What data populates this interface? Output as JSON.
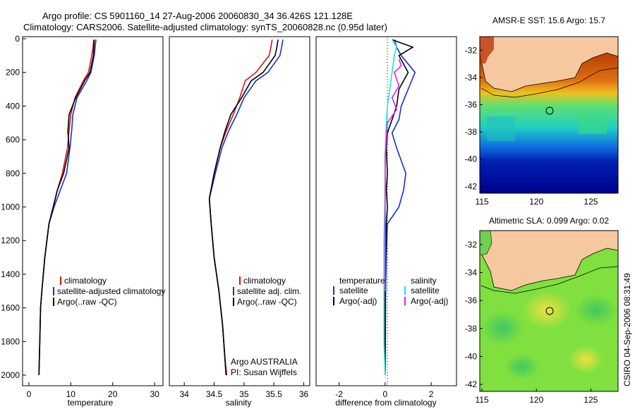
{
  "header": {
    "line1": "Argo profile: CS 5901160_14 27-Aug-2006 20060830_34 36.426S 121.128E",
    "line2": "Climatology: CARS2006. Satellite-adjusted climatology: synTS_20060828.nc (0.95d later)"
  },
  "footer": {
    "stamp": "CSIRO 04-Sep-2006 08:31:49",
    "argo_note": "Argo AUSTRALIA",
    "pi_note": "PI: Susan Wijffels"
  },
  "colors": {
    "climatology": "#e01010",
    "satellite": "#1a2be0",
    "argo": "#000000",
    "sat_sal": "#20e0e0",
    "argo_sal": "#e020e0",
    "land": "#f6c8a0"
  },
  "chart_data": [
    {
      "type": "line",
      "xlabel": "temperature",
      "ylim": [
        2000,
        0
      ],
      "xlim": [
        -1.5,
        32
      ],
      "xticks": [
        0,
        10,
        20,
        30
      ],
      "yticks": [
        0,
        200,
        400,
        600,
        800,
        1000,
        1200,
        1400,
        1600,
        1800,
        2000
      ],
      "legend": [
        "climatology",
        "satellite-adjusted climatology",
        "Argo(..raw -QC)"
      ],
      "series": [
        {
          "name": "climatology",
          "x": [
            15.5,
            15.3,
            15.0,
            14.2,
            13.0,
            11.0,
            10.0,
            9.6,
            9.2,
            8.0,
            6.8,
            5.8,
            4.8,
            3.8,
            3.1,
            2.8,
            2.6,
            2.5,
            2.4
          ],
          "y": [
            5,
            50,
            100,
            200,
            250,
            350,
            450,
            550,
            650,
            800,
            900,
            1000,
            1100,
            1300,
            1500,
            1600,
            1800,
            1900,
            2000
          ]
        },
        {
          "name": "satellite-adjusted climatology",
          "x": [
            16.0,
            15.8,
            15.6,
            14.8,
            13.8,
            11.5,
            10.5,
            10.2,
            9.8,
            9.0,
            7.5,
            6.0,
            4.8,
            3.8,
            3.1,
            2.8,
            2.6,
            2.5,
            2.4
          ],
          "y": [
            5,
            50,
            100,
            200,
            250,
            350,
            450,
            550,
            650,
            800,
            900,
            1000,
            1100,
            1300,
            1500,
            1600,
            1800,
            1900,
            2000
          ]
        },
        {
          "name": "Argo(..raw -QC)",
          "x": [
            15.6,
            15.5,
            15.4,
            14.6,
            13.3,
            11.2,
            9.6,
            9.3,
            9.6,
            8.3,
            6.8,
            5.8,
            4.8,
            3.8,
            3.1,
            2.8,
            2.6,
            2.5,
            2.4
          ],
          "y": [
            5,
            50,
            100,
            200,
            250,
            350,
            450,
            550,
            650,
            800,
            900,
            1000,
            1100,
            1300,
            1500,
            1600,
            1800,
            1900,
            2000
          ]
        }
      ]
    },
    {
      "type": "line",
      "xlabel": "salinity",
      "ylim": [
        2000,
        0
      ],
      "xlim": [
        33.75,
        36.1
      ],
      "xticks": [
        34,
        34.5,
        35,
        35.5,
        36
      ],
      "legend": [
        "climatology",
        "satellite adj. clim.",
        "Argo(..raw -QC)"
      ],
      "series": [
        {
          "name": "climatology",
          "x": [
            35.47,
            35.45,
            35.42,
            35.2,
            35.02,
            34.93,
            34.82,
            34.7,
            34.6,
            34.5,
            34.42,
            34.45,
            34.5,
            34.58,
            34.64,
            34.68,
            34.71
          ],
          "y": [
            5,
            50,
            100,
            200,
            250,
            350,
            450,
            550,
            650,
            800,
            950,
            1100,
            1300,
            1500,
            1700,
            1900,
            2000
          ]
        },
        {
          "name": "satellite adj. clim.",
          "x": [
            35.65,
            35.63,
            35.6,
            35.4,
            35.2,
            35.0,
            34.88,
            34.74,
            34.63,
            34.52,
            34.42,
            34.45,
            34.5,
            34.58,
            34.64,
            34.68,
            34.7
          ],
          "y": [
            5,
            50,
            100,
            200,
            250,
            350,
            450,
            550,
            650,
            800,
            950,
            1100,
            1300,
            1500,
            1700,
            1900,
            2000
          ]
        },
        {
          "name": "Argo(..raw -QC)",
          "x": [
            35.57,
            35.55,
            35.52,
            35.32,
            35.12,
            34.96,
            34.78,
            34.68,
            34.6,
            34.5,
            34.42,
            34.45,
            34.5,
            34.58,
            34.64,
            34.68,
            34.7
          ],
          "y": [
            5,
            50,
            100,
            200,
            250,
            350,
            450,
            550,
            650,
            800,
            950,
            1100,
            1300,
            1500,
            1700,
            1900,
            2000
          ]
        }
      ]
    },
    {
      "type": "line",
      "xlabel": "difference from climatology",
      "ylim": [
        2000,
        0
      ],
      "xlim": [
        -3,
        3.1
      ],
      "xticks": [
        -2,
        0,
        2
      ],
      "legend_headers": [
        "temperature",
        "salinity"
      ],
      "legend": [
        "satellite",
        "Argo(-adj)",
        "satellite",
        "Argo(-adj)"
      ],
      "series": [
        {
          "name": "temperature satellite",
          "x": [
            0.4,
            0.5,
            0.7,
            1.3,
            1.0,
            0.7,
            0.6,
            0.3,
            0.5,
            0.9,
            0.8,
            0.6,
            0.1,
            0.05,
            0.02,
            0.01,
            0.0
          ],
          "y": [
            5,
            50,
            100,
            200,
            300,
            400,
            480,
            560,
            650,
            800,
            900,
            1000,
            1100,
            1300,
            1500,
            1800,
            2000
          ]
        },
        {
          "name": "temperature Argo(-adj)",
          "x": [
            0.3,
            1.2,
            0.6,
            1.0,
            0.6,
            0.5,
            0.3,
            0.1,
            0.05,
            0.1,
            0.05,
            0.1,
            0.05,
            0.02,
            0.0,
            0.0,
            0.0
          ],
          "y": [
            5,
            50,
            100,
            200,
            300,
            400,
            480,
            560,
            650,
            800,
            900,
            1000,
            1100,
            1300,
            1500,
            1800,
            2000
          ]
        },
        {
          "name": "salinity satellite",
          "x": [
            0.3,
            0.5,
            0.4,
            0.3,
            0.2,
            0.1,
            0.05,
            0.0,
            0.0,
            -0.05,
            -0.05,
            -0.05,
            0.0
          ],
          "y": [
            5,
            50,
            100,
            200,
            300,
            400,
            500,
            700,
            900,
            1200,
            1500,
            1800,
            2000
          ]
        },
        {
          "name": "salinity Argo(-adj)",
          "x": [
            0.6,
            0.7,
            0.4,
            0.6,
            0.3,
            0.5,
            0.1,
            0.0,
            0.0,
            0.0
          ],
          "y": [
            120,
            160,
            200,
            280,
            350,
            420,
            500,
            700,
            1000,
            1500
          ]
        }
      ]
    },
    {
      "type": "heatmap",
      "title": "AMSR-E SST: 15.6 Argo: 15.7",
      "xlim": [
        114.8,
        127.5
      ],
      "ylim": [
        -42.5,
        -31
      ],
      "xticks": [
        115,
        120,
        125
      ],
      "yticks": [
        -32,
        -34,
        -36,
        -38,
        -40,
        -42
      ],
      "float_position": {
        "lon": 121.1,
        "lat": -36.4
      }
    },
    {
      "type": "heatmap",
      "title": "Altimetric SLA: 0.099 Argo: 0.02",
      "xlim": [
        114.8,
        127.5
      ],
      "ylim": [
        -42.5,
        -31
      ],
      "xticks": [
        115,
        120,
        125
      ],
      "yticks": [
        -32,
        -34,
        -36,
        -38,
        -40,
        -42
      ],
      "float_position": {
        "lon": 121.1,
        "lat": -36.4
      }
    }
  ]
}
